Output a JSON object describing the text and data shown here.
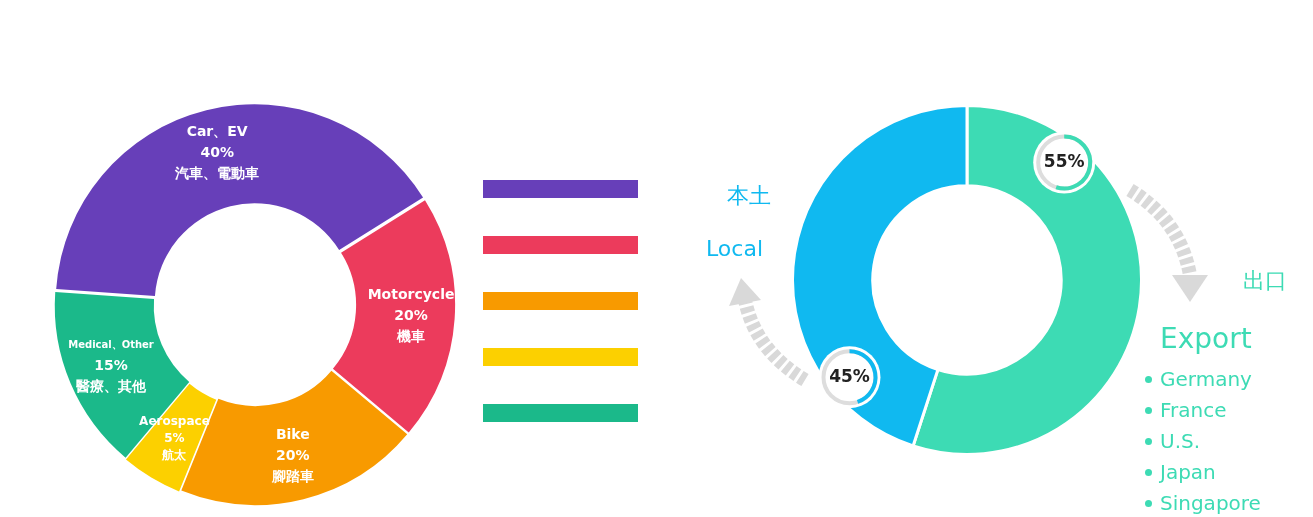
{
  "chart_data": [
    {
      "type": "donut",
      "categories": [
        "Car、EV",
        "Motorcycle",
        "Bike",
        "Aerospace",
        "Medical、Other"
      ],
      "values": [
        40,
        20,
        20,
        5,
        15
      ],
      "colors": [
        "#673fb9",
        "#ec3b5c",
        "#f89a00",
        "#fcd000",
        "#1bb98a"
      ],
      "value_labels": [
        "40%",
        "20%",
        "20%",
        "5%",
        "15%"
      ],
      "legend": false,
      "annotations": [
        {
          "text": "汽車、電動車",
          "x": "Car、EV"
        },
        {
          "text": "機車",
          "x": "Motorcycle"
        },
        {
          "text": "腳踏車",
          "x": "Bike"
        },
        {
          "text": "航太",
          "x": "Aerospace"
        },
        {
          "text": "醫療、其他",
          "x": "Medical、Other"
        }
      ]
    },
    {
      "type": "donut",
      "categories": [
        "Export",
        "Local"
      ],
      "values": [
        55,
        45
      ],
      "colors": [
        "#3ddbb4",
        "#10b9f0"
      ],
      "value_labels": [
        "55%",
        "45%"
      ],
      "legend": false,
      "annotations": [
        {
          "text": "出口",
          "x": "Export"
        },
        {
          "text": "本土",
          "x": "Local"
        },
        "Germany",
        "France",
        "U.S.",
        "Japan",
        "Singapore"
      ]
    }
  ]
}
